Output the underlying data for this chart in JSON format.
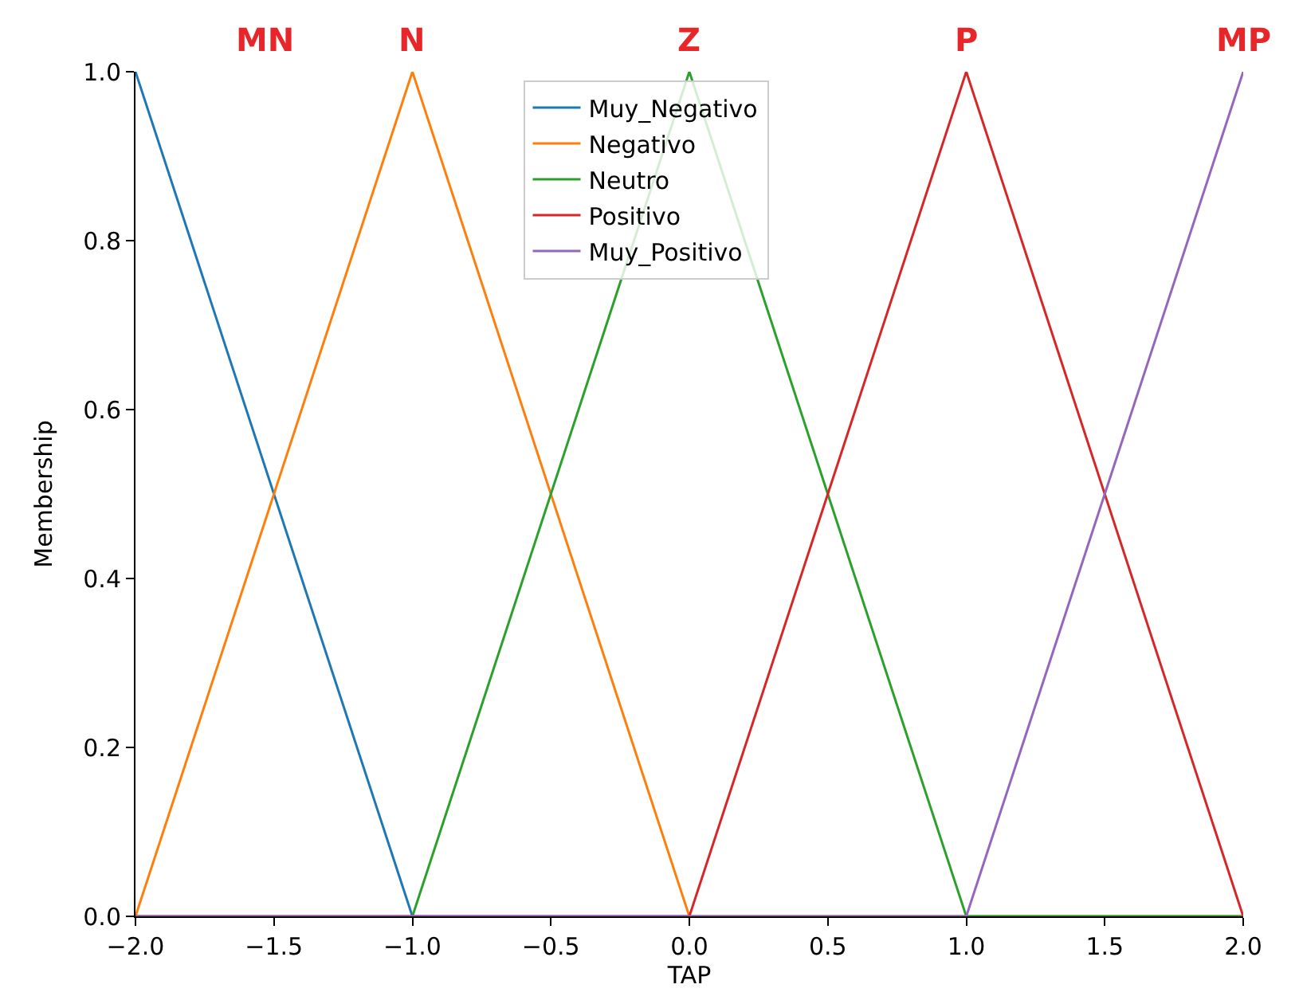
{
  "chart_data": {
    "type": "line",
    "xlabel": "TAP",
    "ylabel": "Membership",
    "xlim": [
      -2,
      2
    ],
    "ylim": [
      0,
      1.0
    ],
    "xticks": [
      {
        "value": -2,
        "label": "−2.0"
      },
      {
        "value": -1.5,
        "label": "−1.5"
      },
      {
        "value": -1,
        "label": "−1.0"
      },
      {
        "value": -0.5,
        "label": "−0.5"
      },
      {
        "value": 0,
        "label": "0.0"
      },
      {
        "value": 0.5,
        "label": "0.5"
      },
      {
        "value": 1,
        "label": "1.0"
      },
      {
        "value": 1.5,
        "label": "1.5"
      },
      {
        "value": 2,
        "label": "2.0"
      }
    ],
    "yticks": [
      {
        "value": 0,
        "label": "0.0"
      },
      {
        "value": 0.2,
        "label": "0.2"
      },
      {
        "value": 0.4,
        "label": "0.4"
      },
      {
        "value": 0.6,
        "label": "0.6"
      },
      {
        "value": 0.8,
        "label": "0.8"
      },
      {
        "value": 1,
        "label": "1.0"
      }
    ],
    "series": [
      {
        "name": "Muy_Negativo",
        "color": "#1f77b4",
        "x": [
          -2,
          -1,
          2
        ],
        "values": [
          1,
          0,
          0
        ]
      },
      {
        "name": "Negativo",
        "color": "#ff7f0e",
        "x": [
          -2,
          -1,
          0,
          2
        ],
        "values": [
          0,
          1,
          0,
          0
        ]
      },
      {
        "name": "Neutro",
        "color": "#2ca02c",
        "x": [
          -2,
          -1,
          0,
          1,
          2
        ],
        "values": [
          0,
          0,
          1,
          0,
          0
        ]
      },
      {
        "name": "Positivo",
        "color": "#d62728",
        "x": [
          -2,
          0,
          1,
          2
        ],
        "values": [
          0,
          0,
          1,
          0
        ]
      },
      {
        "name": "Muy_Positivo",
        "color": "#9467bd",
        "x": [
          -2,
          1,
          2
        ],
        "values": [
          0,
          0,
          1
        ]
      }
    ],
    "annotations": [
      "MN",
      {
        "text": "N",
        "x": -1,
        "y": 1
      },
      {
        "text": "Z",
        "x": 0,
        "y": 1
      },
      {
        "text": "P",
        "x": 1,
        "y": 1
      },
      {
        "text": "MP",
        "x": 2,
        "y": 1
      }
    ],
    "legend": "top",
    "marker": "none",
    "line_style": "solid"
  }
}
